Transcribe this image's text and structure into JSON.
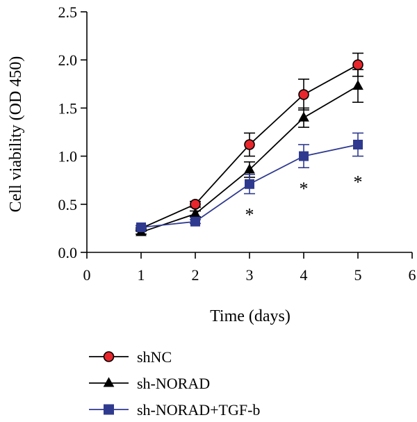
{
  "chart_data": {
    "type": "line",
    "title": "",
    "xlabel": "Time (days)",
    "ylabel": "Cell viability (OD 450)",
    "xlim": [
      0,
      6
    ],
    "ylim": [
      0.0,
      2.5
    ],
    "x_ticks": [
      "0",
      "1",
      "2",
      "3",
      "4",
      "5",
      "6"
    ],
    "y_ticks": [
      "0.0",
      "0.5",
      "1.0",
      "1.5",
      "2.0",
      "2.5"
    ],
    "x": [
      1,
      2,
      3,
      4,
      5
    ],
    "series": [
      {
        "name": "shNC",
        "marker": "circle",
        "color": "#000000",
        "marker_fill": "#e8262c",
        "values": [
          0.25,
          0.5,
          1.12,
          1.64,
          1.95
        ],
        "errors": [
          0.03,
          0.03,
          0.12,
          0.16,
          0.12
        ]
      },
      {
        "name": "sh-NORAD",
        "marker": "triangle",
        "color": "#000000",
        "marker_fill": "#000000",
        "values": [
          0.21,
          0.4,
          0.86,
          1.4,
          1.73
        ],
        "errors": [
          0.02,
          0.03,
          0.08,
          0.1,
          0.17
        ]
      },
      {
        "name": "sh-NORAD+TGF-b",
        "marker": "square",
        "color": "#2f3a8f",
        "marker_fill": "#2f3a8f",
        "values": [
          0.26,
          0.32,
          0.71,
          1.0,
          1.12
        ],
        "errors": [
          0.02,
          0.02,
          0.1,
          0.12,
          0.12
        ]
      }
    ],
    "annotations": [
      {
        "x": 3,
        "y": 0.43,
        "text": "*"
      },
      {
        "x": 4,
        "y": 0.7,
        "text": "*"
      },
      {
        "x": 5,
        "y": 0.77,
        "text": "*"
      }
    ],
    "legend_position": "bottom-left"
  }
}
